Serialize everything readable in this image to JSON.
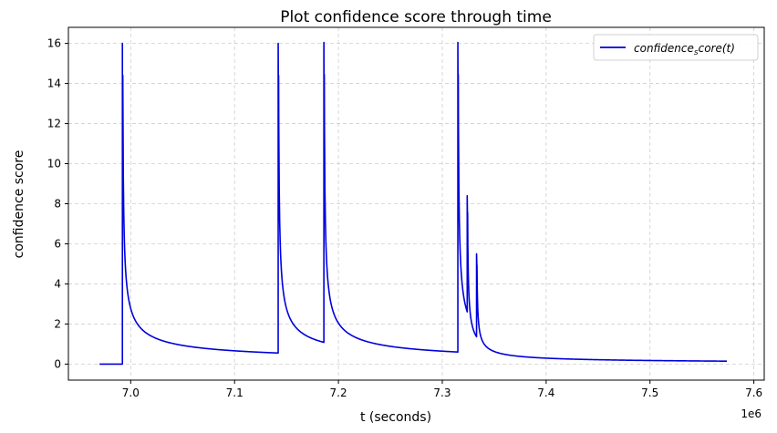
{
  "chart_data": {
    "type": "line",
    "title": "Plot confidence score through time",
    "xlabel": "t (seconds)",
    "ylabel": "confidence score",
    "x_offset_label": "1e6",
    "x_scale": 1000000,
    "xlim": [
      6.94,
      7.61
    ],
    "ylim": [
      -0.8,
      16.8
    ],
    "grid": true,
    "legend_position": "top-right",
    "x_ticks": [
      7.0,
      7.1,
      7.2,
      7.3,
      7.4,
      7.5,
      7.6
    ],
    "x_tick_labels": [
      "7.0",
      "7.1",
      "7.2",
      "7.3",
      "7.4",
      "7.5",
      "7.6"
    ],
    "y_ticks": [
      0,
      2,
      4,
      6,
      8,
      10,
      12,
      14,
      16
    ],
    "y_tick_labels": [
      "0",
      "2",
      "4",
      "6",
      "8",
      "10",
      "12",
      "14",
      "16"
    ],
    "legend": {
      "main": "confidence",
      "sub": "s",
      "rest": "core(t)"
    },
    "series": [
      {
        "name": "confidence_score(t)",
        "color": "#0000dd",
        "x_range": [
          6.97,
          7.574
        ],
        "spikes": [
          {
            "t": 6.992,
            "peak": 16.0
          },
          {
            "t": 7.142,
            "peak": 16.0
          },
          {
            "t": 7.186,
            "peak": 16.05
          },
          {
            "t": 7.315,
            "peak": 16.05
          },
          {
            "t": 7.324,
            "peak": 8.4
          },
          {
            "t": 7.333,
            "peak": 5.5
          }
        ],
        "baseline": 0.0
      }
    ]
  }
}
